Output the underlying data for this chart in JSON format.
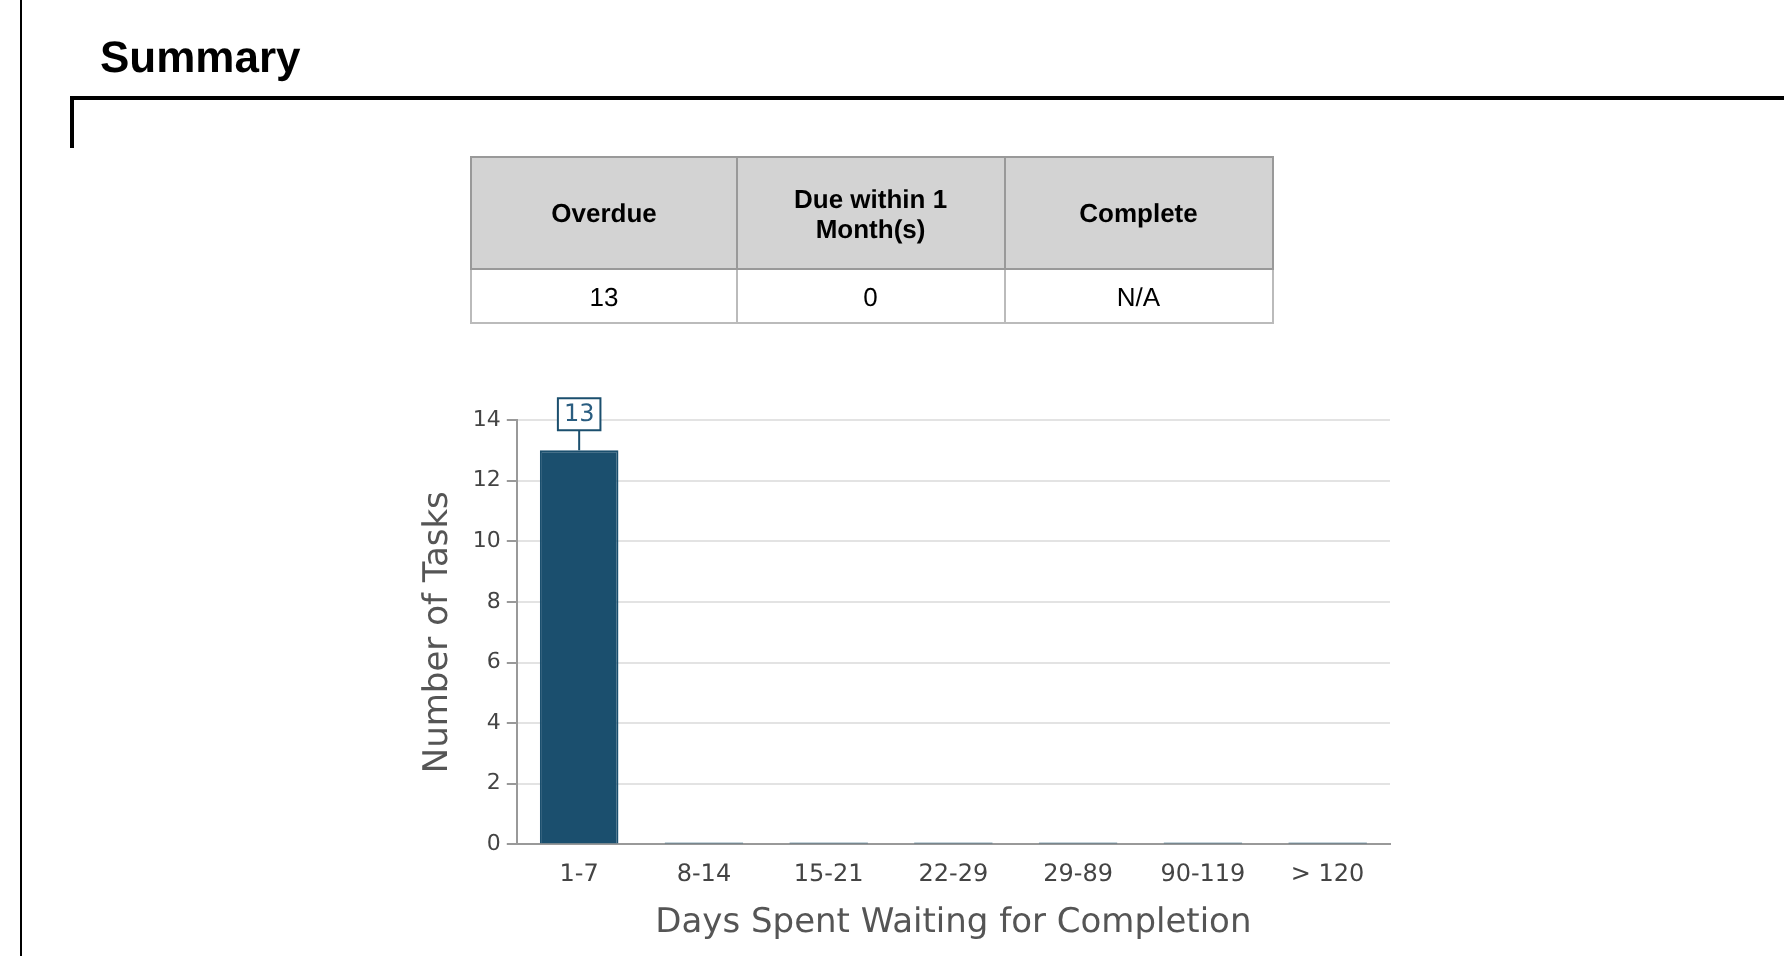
{
  "chart_data": [
    {
      "type": "other",
      "title": "Summary",
      "categories": [
        "Overdue",
        "Due within 1 Month(s)",
        "Complete"
      ],
      "value_labels": [
        "13",
        "0",
        "N/A"
      ]
    },
    {
      "type": "bar",
      "xlabel": "Days Spent Waiting for Completion",
      "ylabel": "Number of Tasks",
      "categories": [
        "1-7",
        "8-14",
        "15-21",
        "22-29",
        "29-89",
        "90-119",
        "> 120"
      ],
      "values": [
        13,
        0,
        0,
        0,
        0,
        0,
        0
      ],
      "color": "#1b4f6e",
      "value_labels": [
        "13",
        null,
        null,
        null,
        null,
        null,
        null
      ],
      "ylim": [
        0,
        14
      ],
      "yticks": [
        0,
        2,
        4,
        6,
        8,
        10,
        12,
        14
      ],
      "grid": "y",
      "legend": false
    }
  ]
}
